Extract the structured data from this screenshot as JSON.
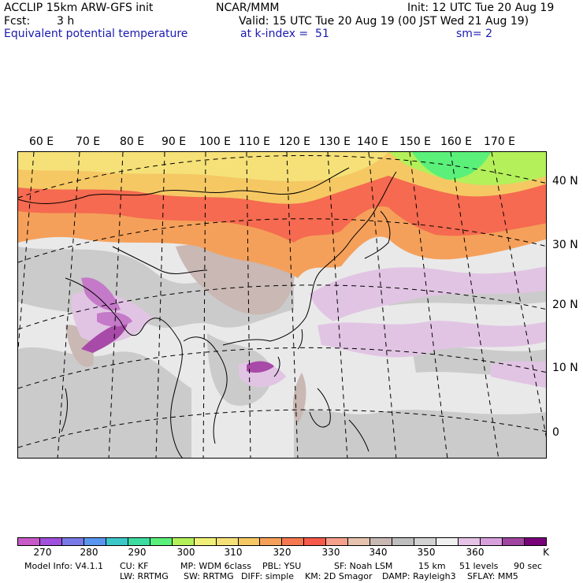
{
  "header": {
    "model_title": "ACCLIP 15km ARW-GFS init",
    "org": "NCAR/MMM",
    "init": "Init: 12 UTC Tue 20 Aug 19",
    "fcst_label": "Fcst:",
    "fcst_value": "3 h",
    "valid": "Valid: 15 UTC Tue 20 Aug 19 (00 JST Wed 21 Aug 19)",
    "field": "Equivalent potential temperature",
    "level": "at k-index =  51",
    "smoothing": "sm= 2"
  },
  "map": {
    "lon_labels": [
      "60 E",
      "70 E",
      "80 E",
      "90 E",
      "100 E",
      "110 E",
      "120 E",
      "130 E",
      "140 E",
      "150 E",
      "160 E",
      "170 E"
    ],
    "lat_labels": [
      "40 N",
      "30 N",
      "20 N",
      "10 N",
      "0"
    ]
  },
  "colorbar": {
    "colors": [
      "#c85ac8",
      "#a050dc",
      "#7878e6",
      "#5a96f0",
      "#3cc8c8",
      "#3cdca0",
      "#5af07a",
      "#b4f05a",
      "#f0f078",
      "#f5e178",
      "#f5c864",
      "#f5a05a",
      "#f57850",
      "#f55a4b",
      "#f5a08c",
      "#e6c3af",
      "#c8b9b4",
      "#bebebe",
      "#d2d2d2",
      "#f0f0f0",
      "#e6c3e6",
      "#d7a0dc",
      "#a046a0",
      "#780078"
    ],
    "labels": [
      "270",
      "280",
      "290",
      "300",
      "310",
      "320",
      "330",
      "340",
      "350",
      "360",
      "K"
    ]
  },
  "footer": {
    "line1_a": "Model Info: V4.1.1",
    "line1_b": "CU: KF",
    "line1_c": "MP: WDM 6class",
    "line1_d": "PBL: YSU",
    "line1_e": "SF: Noah LSM",
    "line1_f": "15 km",
    "line1_g": "51 levels",
    "line1_h": "90 sec",
    "line2_a": "LW: RRTMG",
    "line2_b": "SW: RRTMG",
    "line2_c": "DIFF: simple",
    "line2_d": "KM: 2D Smagor",
    "line2_e": "DAMP: Rayleigh3",
    "line2_f": "SFLAY: MM5"
  }
}
